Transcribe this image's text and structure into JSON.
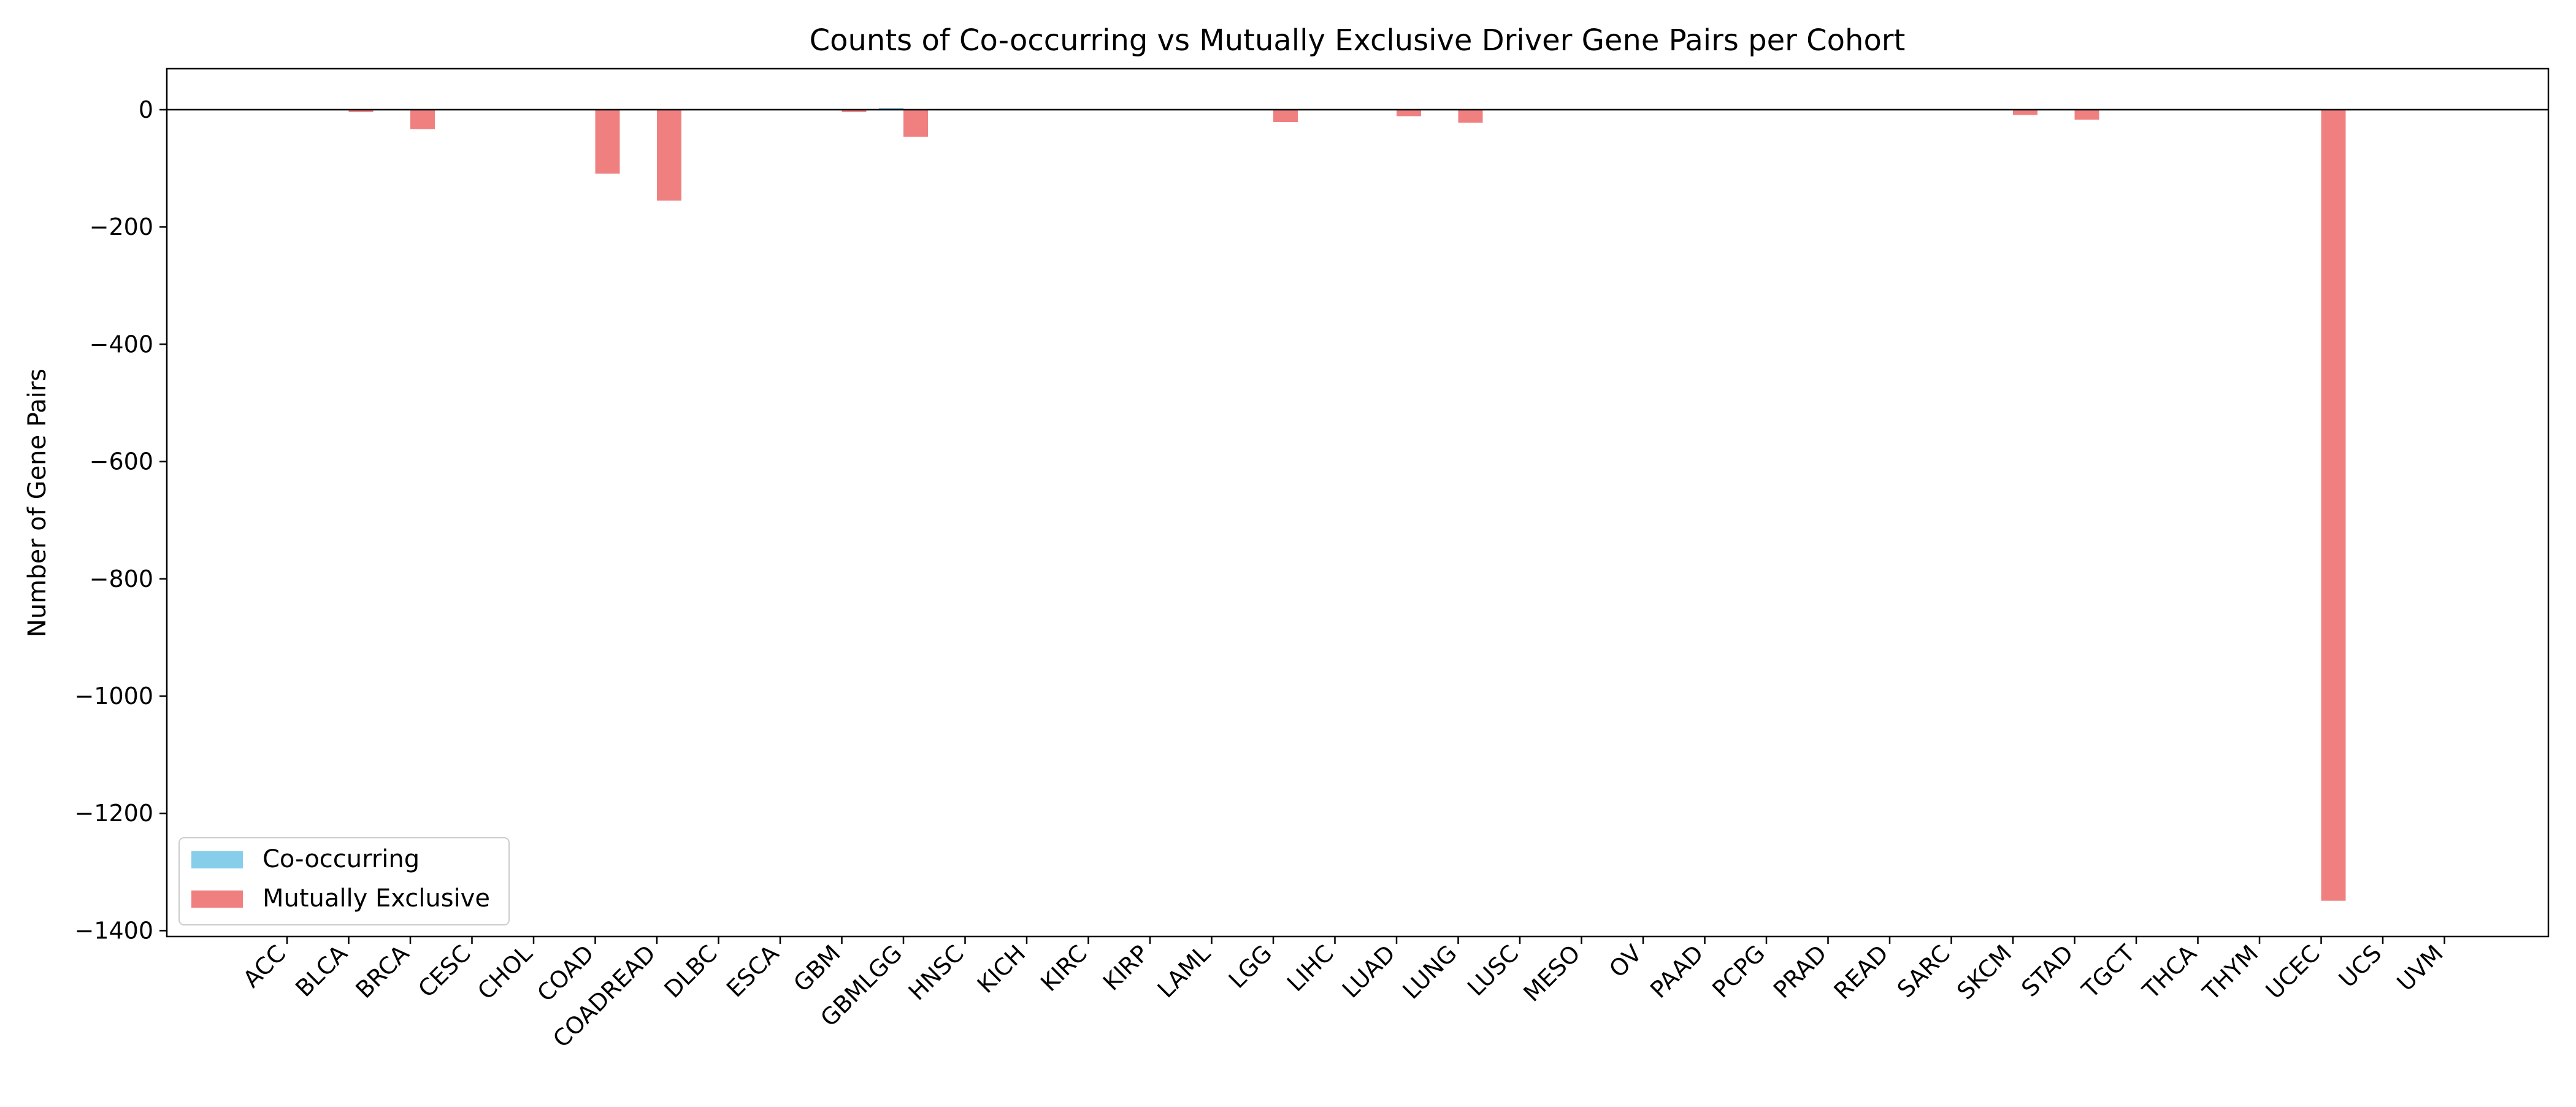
{
  "chart_data": {
    "type": "bar",
    "title": "Counts of Co-occurring vs Mutually Exclusive Driver Gene Pairs per Cohort",
    "xlabel": "",
    "ylabel": "Number of Gene Pairs",
    "ylim": [
      -1410,
      70
    ],
    "yticks": [
      0,
      -200,
      -400,
      -600,
      -800,
      -1000,
      -1200,
      -1400
    ],
    "ytick_labels": [
      "0",
      "−200",
      "−400",
      "−600",
      "−800",
      "−1000",
      "−1200",
      "−1400"
    ],
    "grid": false,
    "legend_position": "lower-left",
    "categories": [
      "ACC",
      "BLCA",
      "BRCA",
      "CESC",
      "CHOL",
      "COAD",
      "COADREAD",
      "DLBC",
      "ESCA",
      "GBM",
      "GBMLGG",
      "HNSC",
      "KICH",
      "KIRC",
      "KIRP",
      "LAML",
      "LGG",
      "LIHC",
      "LUAD",
      "LUNG",
      "LUSC",
      "MESO",
      "OV",
      "PAAD",
      "PCPG",
      "PRAD",
      "READ",
      "SARC",
      "SKCM",
      "STAD",
      "TGCT",
      "THCA",
      "THYM",
      "UCEC",
      "UCS",
      "UVM"
    ],
    "series": [
      {
        "name": "Co-occurring",
        "color": "#87ceeb",
        "values": [
          0,
          0,
          0,
          0,
          0,
          0,
          0,
          0,
          0,
          0,
          3,
          0,
          0,
          0,
          0,
          0,
          0,
          0,
          0,
          0,
          0,
          0,
          0,
          0,
          0,
          0,
          0,
          0,
          0,
          0,
          0,
          0,
          0,
          0,
          0,
          0
        ]
      },
      {
        "name": "Mutually Exclusive",
        "color": "#f08080",
        "values": [
          0,
          -4,
          -33,
          0,
          0,
          -109,
          -155,
          0,
          0,
          -4,
          -46,
          0,
          0,
          0,
          0,
          0,
          -21,
          0,
          -11,
          -22,
          0,
          0,
          0,
          0,
          0,
          0,
          0,
          0,
          -9,
          -17,
          0,
          0,
          0,
          -1349,
          0,
          0
        ]
      }
    ]
  }
}
